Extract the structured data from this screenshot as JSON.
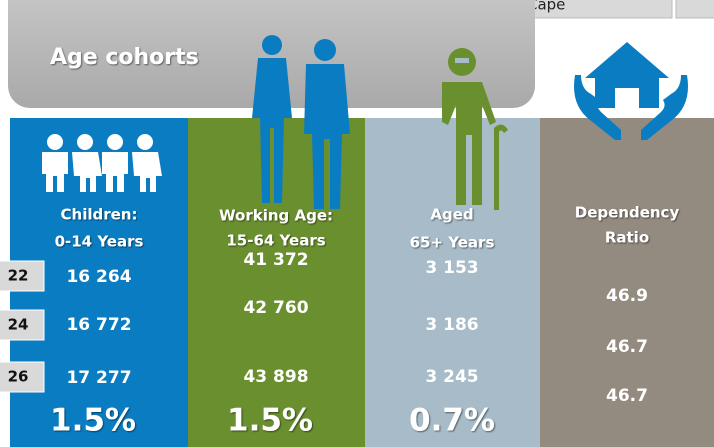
{
  "top_tab": {
    "label": "Cape"
  },
  "banner": {
    "title": "Age cohorts"
  },
  "years": [
    "22",
    "24",
    "26"
  ],
  "columns": [
    {
      "header": [
        "Children:",
        "0-14 Years"
      ],
      "values": [
        "16 264",
        "16 772",
        "17 277"
      ],
      "change": "1.5%"
    },
    {
      "header": [
        "Working Age:",
        "15-64 Years"
      ],
      "values": [
        "41 372",
        "42 760",
        "43 898"
      ],
      "change": "1.5%"
    },
    {
      "header": [
        "Aged",
        "65+ Years"
      ],
      "values": [
        "3 153",
        "3 186",
        "3 245"
      ],
      "change": "0.7%"
    },
    {
      "header": [
        "Dependency",
        "Ratio"
      ],
      "values": [
        "46.9",
        "46.7",
        "46.7"
      ]
    }
  ]
}
